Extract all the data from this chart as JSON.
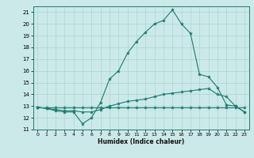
{
  "title": "",
  "xlabel": "Humidex (Indice chaleur)",
  "ylabel": "",
  "bg_color": "#cce9e9",
  "line_color": "#1a7a6e",
  "grid_color": "#aad4d4",
  "xlim": [
    -0.5,
    23.5
  ],
  "ylim": [
    11,
    21.5
  ],
  "yticks": [
    11,
    12,
    13,
    14,
    15,
    16,
    17,
    18,
    19,
    20,
    21
  ],
  "xticks": [
    0,
    1,
    2,
    3,
    4,
    5,
    6,
    7,
    8,
    9,
    10,
    11,
    12,
    13,
    14,
    15,
    16,
    17,
    18,
    19,
    20,
    21,
    22,
    23
  ],
  "line1_x": [
    0,
    1,
    2,
    3,
    4,
    5,
    6,
    7,
    8,
    9,
    10,
    11,
    12,
    13,
    14,
    15,
    16,
    17,
    18,
    19,
    20,
    21,
    22,
    23
  ],
  "line1_y": [
    12.9,
    12.8,
    12.6,
    12.5,
    12.5,
    11.5,
    12.0,
    13.3,
    15.3,
    16.0,
    17.5,
    18.5,
    19.3,
    20.0,
    20.3,
    21.2,
    20.0,
    19.2,
    15.7,
    15.5,
    14.6,
    13.1,
    13.0,
    12.5
  ],
  "line2_x": [
    0,
    1,
    2,
    3,
    4,
    5,
    6,
    7,
    8,
    9,
    10,
    11,
    12,
    13,
    14,
    15,
    16,
    17,
    18,
    19,
    20,
    21,
    22,
    23
  ],
  "line2_y": [
    12.9,
    12.8,
    12.7,
    12.6,
    12.6,
    12.5,
    12.5,
    12.7,
    13.0,
    13.2,
    13.4,
    13.5,
    13.6,
    13.8,
    14.0,
    14.1,
    14.2,
    14.3,
    14.4,
    14.5,
    14.0,
    13.8,
    13.0,
    12.5
  ],
  "line3_x": [
    0,
    1,
    2,
    3,
    4,
    5,
    6,
    7,
    8,
    9,
    10,
    11,
    12,
    13,
    14,
    15,
    16,
    17,
    18,
    19,
    20,
    21,
    22,
    23
  ],
  "line3_y": [
    12.9,
    12.9,
    12.9,
    12.9,
    12.9,
    12.9,
    12.9,
    12.9,
    12.9,
    12.9,
    12.9,
    12.9,
    12.9,
    12.9,
    12.9,
    12.9,
    12.9,
    12.9,
    12.9,
    12.9,
    12.9,
    12.9,
    12.9,
    12.9
  ]
}
